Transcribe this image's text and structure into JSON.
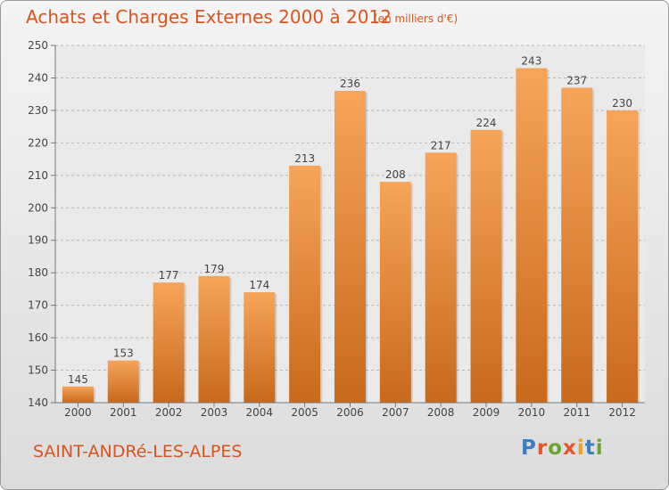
{
  "chart_data": {
    "type": "bar",
    "title": "Achats et Charges Externes 2000 à 2012",
    "subtitle": "(en milliers d'€)",
    "xlabel": "",
    "ylabel": "",
    "categories": [
      "2000",
      "2001",
      "2002",
      "2003",
      "2004",
      "2005",
      "2006",
      "2007",
      "2008",
      "2009",
      "2010",
      "2011",
      "2012"
    ],
    "values": [
      145,
      153,
      177,
      179,
      174,
      213,
      236,
      208,
      217,
      224,
      243,
      237,
      230
    ],
    "ylim": [
      140,
      250
    ],
    "yticks": [
      140,
      150,
      160,
      170,
      180,
      190,
      200,
      210,
      220,
      230,
      240,
      250
    ],
    "grid": "horizontal-dashed",
    "legend": "none",
    "bar_color_light": "#f6a55a",
    "bar_color_dark": "#c8691c"
  },
  "footer": {
    "place": "SAINT-ANDRé-LES-ALPES",
    "logo": "Proxiti"
  },
  "colors": {
    "title": "#d9541e",
    "logo_letters": [
      "#3a7fc1",
      "#e8542a",
      "#6aa532",
      "#e8542a",
      "#f0a020",
      "#3a7fc1",
      "#6aa532"
    ]
  }
}
